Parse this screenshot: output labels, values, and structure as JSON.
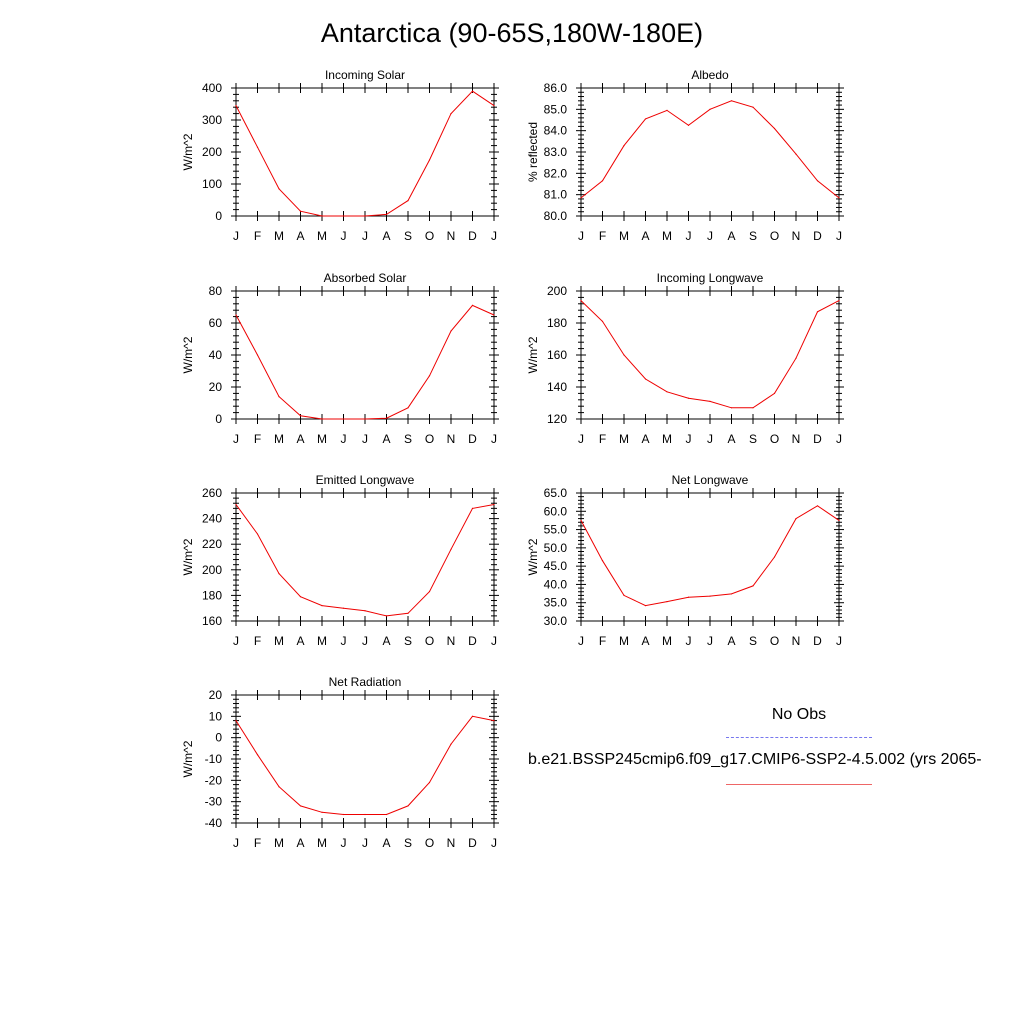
{
  "title": "Antarctica (90-65S,180W-180E)",
  "month_labels": [
    "J",
    "F",
    "M",
    "A",
    "M",
    "J",
    "J",
    "A",
    "S",
    "O",
    "N",
    "D",
    "J"
  ],
  "legend": {
    "obs_label": "No Obs",
    "run_label": "b.e21.BSSP245cmip6.f09_g17.CMIP6-SSP2-4.5.002 (yrs 2065-",
    "obs_color": "#7777ee",
    "run_color": "#ee0000"
  },
  "chart_data": [
    {
      "type": "line",
      "title": "Incoming Solar",
      "ylabel": "W/m^2",
      "ylim": [
        0,
        400
      ],
      "yticks": [
        "0",
        "100",
        "200",
        "300",
        "400"
      ],
      "series": [
        {
          "values": [
            345,
            215,
            85,
            15,
            0,
            0,
            0,
            5,
            48,
            175,
            320,
            390,
            345
          ]
        }
      ]
    },
    {
      "type": "line",
      "title": "Albedo",
      "ylabel": "% reflected",
      "ylim": [
        80.0,
        86.0
      ],
      "yticks": [
        "80.0",
        "81.0",
        "82.0",
        "83.0",
        "84.0",
        "85.0",
        "86.0"
      ],
      "series": [
        {
          "values": [
            80.85,
            81.65,
            83.3,
            84.55,
            84.95,
            84.25,
            85.0,
            85.4,
            85.1,
            84.1,
            82.9,
            81.65,
            80.85
          ]
        }
      ]
    },
    {
      "type": "line",
      "title": "Absorbed Solar",
      "ylabel": "W/m^2",
      "ylim": [
        0,
        80
      ],
      "yticks": [
        "0",
        "20",
        "40",
        "60",
        "80"
      ],
      "series": [
        {
          "values": [
            65,
            40,
            14,
            2,
            0,
            0,
            0,
            0.5,
            7,
            27,
            55,
            71,
            65
          ]
        }
      ]
    },
    {
      "type": "line",
      "title": "Incoming Longwave",
      "ylabel": "W/m^2",
      "ylim": [
        120,
        200
      ],
      "yticks": [
        "120",
        "140",
        "160",
        "180",
        "200"
      ],
      "series": [
        {
          "values": [
            194,
            181,
            160,
            145,
            137,
            133,
            131,
            127,
            127,
            136,
            158,
            187,
            194
          ]
        }
      ]
    },
    {
      "type": "line",
      "title": "Emitted Longwave",
      "ylabel": "W/m^2",
      "ylim": [
        160,
        260
      ],
      "yticks": [
        "160",
        "180",
        "200",
        "220",
        "240",
        "260"
      ],
      "series": [
        {
          "values": [
            251,
            228,
            197,
            179,
            172,
            170,
            168,
            164,
            166,
            183,
            216,
            248,
            251
          ]
        }
      ]
    },
    {
      "type": "line",
      "title": "Net Longwave",
      "ylabel": "W/m^2",
      "ylim": [
        30.0,
        65.0
      ],
      "yticks": [
        "30.0",
        "35.0",
        "40.0",
        "45.0",
        "50.0",
        "55.0",
        "60.0",
        "65.0"
      ],
      "series": [
        {
          "values": [
            57.5,
            46.5,
            37.0,
            34.2,
            35.3,
            36.5,
            36.8,
            37.4,
            39.6,
            47.5,
            58.0,
            61.5,
            57.5
          ]
        }
      ]
    },
    {
      "type": "line",
      "title": "Net Radiation",
      "ylabel": "W/m^2",
      "ylim": [
        -40,
        20
      ],
      "yticks": [
        "-40",
        "-30",
        "-20",
        "-10",
        "0",
        "10",
        "20"
      ],
      "series": [
        {
          "values": [
            8,
            -8,
            -23,
            -32,
            -35,
            -36,
            -36,
            -36,
            -32,
            -21,
            -3,
            10,
            8
          ]
        }
      ]
    }
  ]
}
